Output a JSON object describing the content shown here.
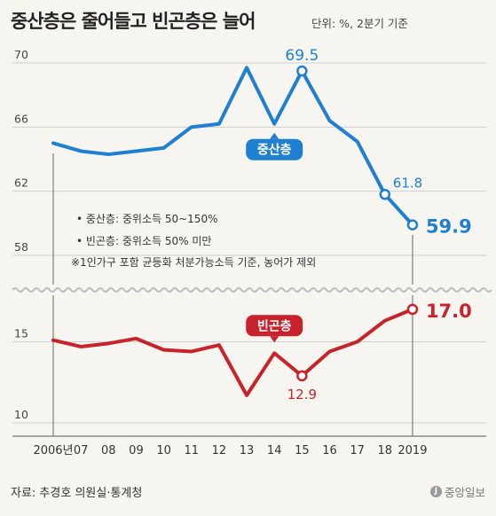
{
  "title": "중산층은 줄어들고 빈곤층은 늘어",
  "unit_note": "단위: %, 2분기 기준",
  "source": "자료: 추경호 의원실·통계청",
  "logo_text": "중앙일보",
  "notes": [
    "• 중산층: 중위소득 50~150%",
    "• 빈곤층: 중위소득 50% 미만",
    "※1인가구 포함 균등화 처분가능소득 기준, 농어가 제외"
  ],
  "colors": {
    "middle": "#1f7fd1",
    "poor": "#c8232c",
    "grid": "#cfcfcf",
    "axis": "#888888"
  },
  "chart_data": {
    "type": "line",
    "x": [
      "2006년",
      "07",
      "08",
      "09",
      "10",
      "11",
      "12",
      "13",
      "14",
      "15",
      "16",
      "17",
      "18",
      "2019"
    ],
    "panels": [
      {
        "series_name": "중산층",
        "ylim": [
          58,
          70
        ],
        "yticks": [
          70,
          66,
          62,
          58
        ],
        "values": [
          65.0,
          64.5,
          64.3,
          64.5,
          64.7,
          66.0,
          66.2,
          69.7,
          66.2,
          69.5,
          66.4,
          65.1,
          61.8,
          59.9
        ],
        "labels": [
          {
            "index": 9,
            "text": "69.5"
          },
          {
            "index": 12,
            "text": "61.8"
          },
          {
            "index": 13,
            "text": "59.9"
          }
        ]
      },
      {
        "series_name": "빈곤층",
        "ylim": [
          10,
          20
        ],
        "yticks": [
          15,
          10
        ],
        "values": [
          15.1,
          14.7,
          14.9,
          15.2,
          14.5,
          14.4,
          14.8,
          11.7,
          14.3,
          12.9,
          14.4,
          15.0,
          16.3,
          17.0
        ],
        "labels": [
          {
            "index": 9,
            "text": "12.9"
          },
          {
            "index": 13,
            "text": "17.0"
          }
        ]
      }
    ]
  }
}
